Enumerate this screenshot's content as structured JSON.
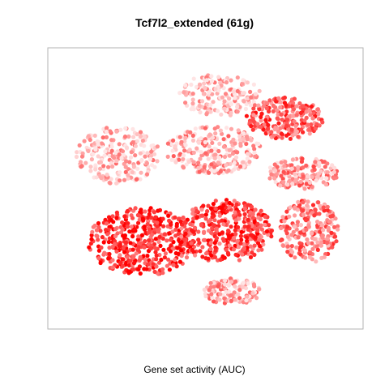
{
  "chart_data": {
    "type": "scatter",
    "title": "Tcf7l2_extended (61g)",
    "xlabel": "Gene set activity (AUC)",
    "ylabel": "",
    "xlim": [
      0,
      100
    ],
    "ylim": [
      0,
      100
    ],
    "grid": false,
    "axes_ticks": false,
    "color_scale": {
      "low": "#ffe4e4",
      "high": "#ff0000"
    },
    "clusters": [
      {
        "id": "top-center",
        "cx": 54,
        "cy": 86,
        "rx": 14,
        "ry": 8,
        "intensity": 0.18,
        "count": 180
      },
      {
        "id": "top-right",
        "cx": 76,
        "cy": 77,
        "rx": 13,
        "ry": 8,
        "intensity": 0.6,
        "count": 220
      },
      {
        "id": "upper-left",
        "cx": 20,
        "cy": 63,
        "rx": 14,
        "ry": 11,
        "intensity": 0.2,
        "count": 230
      },
      {
        "id": "upper-middle",
        "cx": 52,
        "cy": 65,
        "rx": 16,
        "ry": 9,
        "intensity": 0.25,
        "count": 240
      },
      {
        "id": "right-arm",
        "cx": 82,
        "cy": 56,
        "rx": 12,
        "ry": 6,
        "intensity": 0.35,
        "count": 160
      },
      {
        "id": "lower-left",
        "cx": 28,
        "cy": 30,
        "rx": 18,
        "ry": 13,
        "intensity": 0.78,
        "count": 420
      },
      {
        "id": "lower-middle",
        "cx": 56,
        "cy": 34,
        "rx": 16,
        "ry": 12,
        "intensity": 0.7,
        "count": 380
      },
      {
        "id": "lower-right",
        "cx": 84,
        "cy": 34,
        "rx": 10,
        "ry": 12,
        "intensity": 0.5,
        "count": 220
      },
      {
        "id": "bottom-center",
        "cx": 58,
        "cy": 11,
        "rx": 10,
        "ry": 5,
        "intensity": 0.28,
        "count": 120
      }
    ]
  }
}
